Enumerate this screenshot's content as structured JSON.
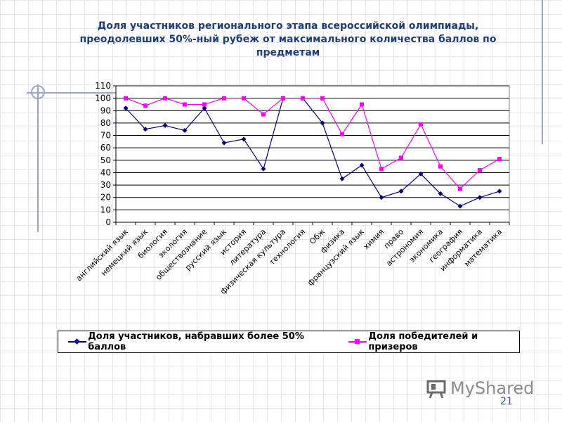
{
  "title": "Доля участников регионального этапа всероссийской олимпиады, преодолевших 50%-ный рубеж от максимального количества  баллов по предметам",
  "page_number": "21",
  "logo": {
    "text": "MyShared",
    "icon": "presentation-board-icon"
  },
  "colors": {
    "series1": "#000080",
    "series2": "#ff00ff",
    "title": "#1f3d7a"
  },
  "chart_data": {
    "type": "line",
    "ylim": [
      0,
      110
    ],
    "yticks": [
      0,
      10,
      20,
      30,
      40,
      50,
      60,
      70,
      80,
      90,
      100,
      110
    ],
    "grid": "horizontal",
    "legend_position": "bottom",
    "categories": [
      "английский язык",
      "немецкий язык",
      "биология",
      "экология",
      "обществознание",
      "русский язык",
      "история",
      "литература",
      "физическая культура",
      "технология",
      "Обж",
      "физика",
      "французский язык",
      "химия",
      "право",
      "астрономия",
      "экономика",
      "география",
      "информатика",
      "математика"
    ],
    "series": [
      {
        "name": "Доля участников, набравших более 50% баллов",
        "marker": "diamond",
        "color": "#000080",
        "values": [
          92,
          75,
          78,
          74,
          92,
          64,
          67,
          43,
          100,
          100,
          80,
          35,
          46,
          20,
          25,
          39,
          23,
          13,
          20,
          25
        ]
      },
      {
        "name": "Доля победителей и призеров",
        "marker": "square",
        "color": "#ff00ff",
        "values": [
          100,
          94,
          100,
          95,
          95,
          100,
          100,
          87,
          100,
          100,
          100,
          71,
          95,
          43,
          52,
          79,
          45,
          27,
          42,
          51
        ]
      }
    ]
  }
}
